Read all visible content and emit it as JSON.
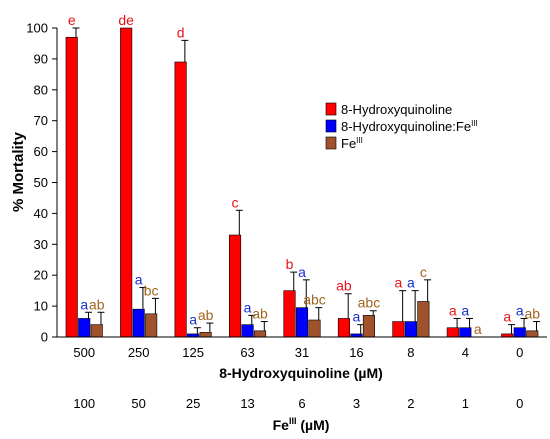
{
  "chart_data": {
    "type": "bar",
    "ylabel": "% Mortality",
    "xlabel_primary": "8-Hydroxyquinoline (µM)",
    "xlabel_secondary_base": "Fe",
    "xlabel_secondary_sup": "III",
    "xlabel_secondary_unit": " (µM)",
    "ylim": [
      0,
      100
    ],
    "yticks": [
      "0",
      "10",
      "20",
      "30",
      "40",
      "50",
      "60",
      "70",
      "80",
      "90",
      "100"
    ],
    "categories": [
      "500",
      "250",
      "125",
      "63",
      "31",
      "16",
      "8",
      "4",
      "0"
    ],
    "categories_secondary": [
      "100",
      "50",
      "25",
      "13",
      "6",
      "3",
      "2",
      "1",
      "0"
    ],
    "legend_position": "right",
    "series": [
      {
        "name": "8-Hydroxyquinoline",
        "legend_base": "8-Hydroxyquinoline",
        "legend_sup": "",
        "color": "#ff0000",
        "label_color": "#e8131b",
        "values": [
          97,
          100,
          89,
          33,
          15,
          6,
          5,
          3,
          1
        ],
        "errors": [
          3,
          0,
          7,
          8,
          6,
          8,
          10,
          3,
          3
        ],
        "letters": [
          "e",
          "de",
          "d",
          "c",
          "b",
          "ab",
          "a",
          "a",
          "a"
        ]
      },
      {
        "name": "8-Hydroxyquinoline:FeIII",
        "legend_base": "8-Hydroxyquinoline:Fe",
        "legend_sup": "III",
        "color": "#0000ff",
        "label_color": "#1a2fcc",
        "values": [
          6,
          9,
          1,
          4,
          9.5,
          1,
          5,
          3,
          3
        ],
        "errors": [
          2,
          7,
          2,
          3,
          9,
          3,
          10,
          3,
          3
        ],
        "letters": [
          "a",
          "a",
          "a",
          "a",
          "a",
          "a",
          "a",
          "a",
          "a"
        ]
      },
      {
        "name": "FeIII",
        "legend_base": "Fe",
        "legend_sup": "III",
        "color": "#a0522d",
        "label_color": "#a0651e",
        "values": [
          4,
          7.5,
          1.5,
          2,
          5.5,
          7,
          11.5,
          0,
          2
        ],
        "errors": [
          4,
          5,
          3,
          3,
          4,
          1.5,
          7,
          0,
          3
        ],
        "letters": [
          "ab",
          "bc",
          "ab",
          "ab",
          "abc",
          "abc",
          "c",
          "a",
          "ab"
        ]
      }
    ]
  }
}
